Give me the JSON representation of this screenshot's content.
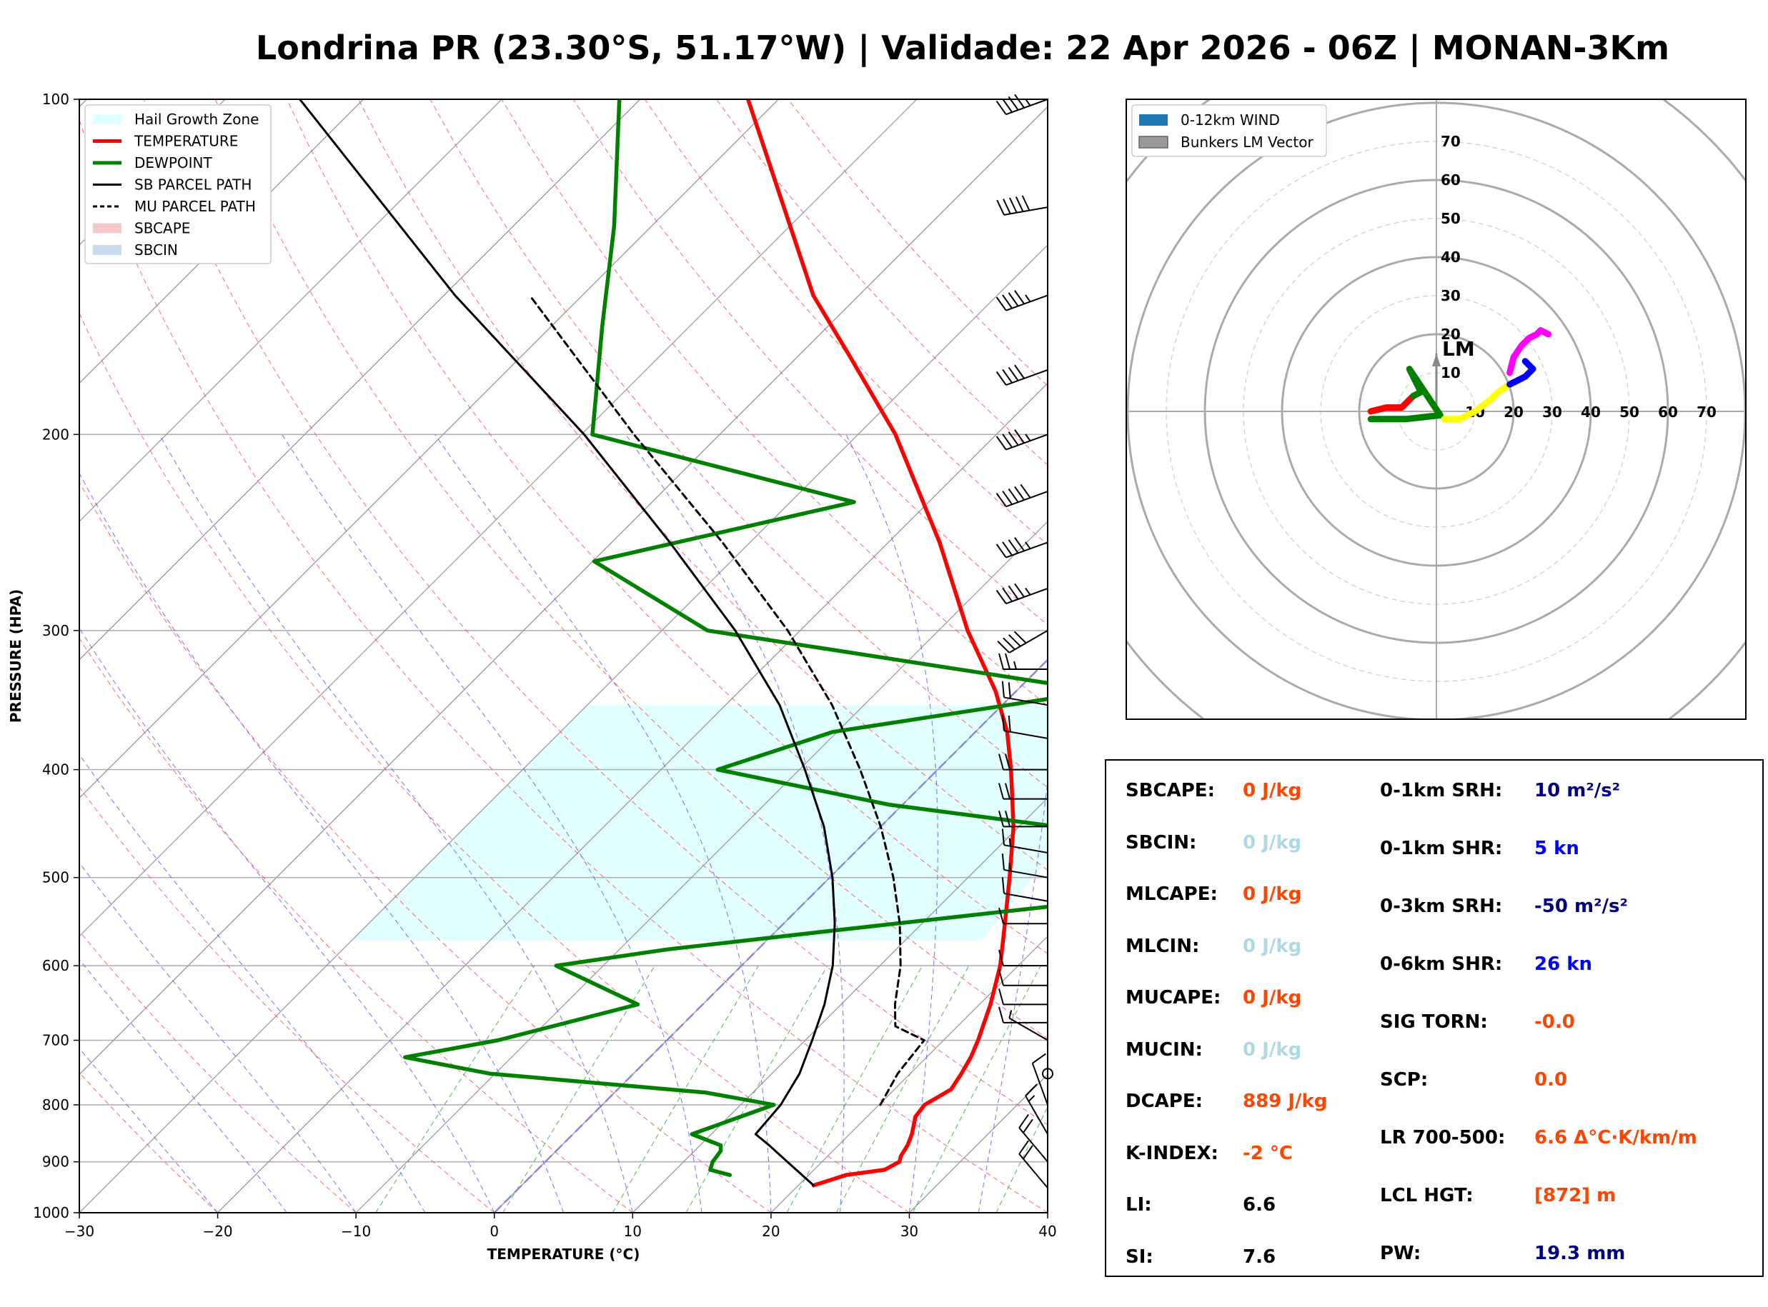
{
  "title": "Londrina PR (23.30°S, 51.17°W) | Validade: 22 Apr 2026 - 06Z | MONAN-3Km",
  "chart_data": [
    {
      "type": "line",
      "name": "skew-t",
      "xlabel": "TEMPERATURE (°C)",
      "ylabel": "PRESSURE (HPA)",
      "xlim": [
        -30,
        40
      ],
      "ylim": [
        1000,
        100
      ],
      "y_scale": "log",
      "skew": true,
      "x_ticks": [
        "−30",
        "−20",
        "−10",
        "0",
        "10",
        "20",
        "30",
        "40"
      ],
      "y_ticks": [
        "100",
        "200",
        "300",
        "400",
        "500",
        "600",
        "700",
        "800",
        "900",
        "1000"
      ],
      "legend_position": "top-left",
      "legend": [
        {
          "label": "Hail Growth Zone",
          "color": "#e0ffff",
          "kind": "patch"
        },
        {
          "label": "TEMPERATURE",
          "color": "#ff0000",
          "kind": "line"
        },
        {
          "label": "DEWPOINT",
          "color": "#008000",
          "kind": "line"
        },
        {
          "label": "SB PARCEL PATH",
          "color": "#000000",
          "kind": "line"
        },
        {
          "label": "MU PARCEL PATH",
          "color": "#000000",
          "kind": "dashed"
        },
        {
          "label": "SBCAPE",
          "color": "#f8c8c8",
          "kind": "patch"
        },
        {
          "label": "SBCIN",
          "color": "#c8dcee",
          "kind": "patch"
        }
      ],
      "series": [
        {
          "name": "TEMPERATURE",
          "color": "#ff0000",
          "p": [
            945,
            925,
            915,
            900,
            890,
            870,
            850,
            820,
            800,
            775,
            750,
            725,
            700,
            650,
            600,
            550,
            500,
            450,
            400,
            370,
            340,
            300,
            250,
            200,
            170,
            150,
            125,
            100
          ],
          "t": [
            21.1,
            22.7,
            25.1,
            25.6,
            25.3,
            25.0,
            24.5,
            23.5,
            23.3,
            24.1,
            23.7,
            23.2,
            22.5,
            20.8,
            18.7,
            16.0,
            13.0,
            9.6,
            5.3,
            2.3,
            -1.5,
            -7.9,
            -16.3,
            -27.3,
            -36.3,
            -43.3,
            -51.8,
            -62.2
          ]
        },
        {
          "name": "DEWPOINT",
          "color": "#008000",
          "p": [
            925,
            915,
            900,
            880,
            870,
            850,
            800,
            780,
            750,
            725,
            700,
            650,
            600,
            580,
            560,
            520,
            500,
            490,
            470,
            430,
            400,
            370,
            340,
            300,
            260,
            230,
            200,
            160,
            130,
            100
          ],
          "t": [
            14.3,
            12.5,
            12.1,
            11.9,
            11.5,
            8.6,
            12.4,
            6.6,
            -10.4,
            -17.7,
            -12.2,
            -4.7,
            -13.4,
            -6.5,
            3.1,
            23.8,
            23.1,
            22.6,
            25.9,
            -1.0,
            -15.9,
            -10.3,
            6.0,
            -26.7,
            -39.9,
            -25.4,
            -49.2,
            -56.3,
            -62.7,
            -71.5
          ]
        },
        {
          "name": "SB PARCEL PATH",
          "color": "#000000",
          "p": [
            945,
            900,
            870,
            850,
            800,
            750,
            700,
            650,
            600,
            550,
            500,
            450,
            400,
            350,
            300,
            250,
            200,
            150,
            100
          ],
          "t": [
            21.1,
            17.5,
            15.0,
            13.2,
            12.9,
            12.0,
            10.5,
            8.8,
            6.6,
            3.7,
            0.2,
            -4.1,
            -9.6,
            -16.1,
            -24.7,
            -35.8,
            -49.8,
            -69.2,
            -94.6
          ]
        },
        {
          "name": "MU PARCEL PATH",
          "color": "#000000",
          "dash": true,
          "p": [
            800,
            750,
            700,
            680,
            650,
            600,
            550,
            500,
            450,
            400,
            350,
            300,
            250,
            200,
            150
          ],
          "t": [
            20.1,
            19.1,
            18.6,
            15.5,
            13.9,
            11.5,
            8.4,
            4.6,
            0.0,
            -5.6,
            -12.3,
            -20.9,
            -32.0,
            -46.2,
            -63.8
          ]
        }
      ],
      "hail_growth_zone": {
        "p_bottom": 570,
        "p_top": 350,
        "t_min": -30,
        "t_max": 13
      }
    },
    {
      "type": "scatter",
      "name": "hodograph",
      "rings": [
        10,
        20,
        30,
        40,
        50,
        60,
        70
      ],
      "ring_labels_x": [
        "10",
        "20",
        "30",
        "40",
        "50",
        "60",
        "70"
      ],
      "ring_labels_y": [
        "10",
        "20",
        "30",
        "40",
        "50",
        "60",
        "70"
      ],
      "legend": [
        {
          "label": "0-12km WIND",
          "color": "#1f77b4"
        },
        {
          "label": "Bunkers LM Vector",
          "color": "#999999"
        }
      ],
      "legend_position": "top-left",
      "lm_label": "LM",
      "lm_vector": {
        "u": 0,
        "v": 15
      },
      "series": [
        {
          "segment": "0-1km",
          "color": "#ff0000",
          "u": [
            -17,
            -13,
            -9,
            -7,
            -6
          ],
          "v": [
            0,
            1,
            1,
            3,
            4
          ]
        },
        {
          "segment": "1-3km",
          "color": "#008000",
          "u": [
            -6,
            -4,
            -7,
            -5,
            -3,
            -1,
            1,
            -8,
            -14,
            -17
          ],
          "v": [
            4,
            5,
            11,
            8,
            5,
            2,
            -1,
            -2,
            -2,
            -2
          ]
        },
        {
          "segment": "3-6km",
          "color": "#ffff00",
          "u": [
            2,
            6,
            10,
            14,
            16,
            19
          ],
          "v": [
            -2,
            -2,
            0,
            3,
            5,
            7
          ]
        },
        {
          "segment": "6-9km",
          "color": "#0000ff",
          "u": [
            19,
            21,
            23,
            24,
            25,
            24,
            23
          ],
          "v": [
            7,
            8,
            9,
            10,
            11,
            12,
            13
          ]
        },
        {
          "segment": "9-12km",
          "color": "#ff00ff",
          "u": [
            19,
            20,
            22,
            24,
            26,
            27,
            29
          ],
          "v": [
            10,
            14,
            17,
            19,
            20,
            21,
            20
          ]
        }
      ]
    }
  ],
  "wind_barbs": {
    "p": [
      100,
      125,
      150,
      175,
      200,
      225,
      250,
      275,
      300,
      325,
      350,
      375,
      400,
      425,
      450,
      475,
      500,
      525,
      550,
      600,
      625,
      650,
      675,
      700,
      750,
      800,
      850,
      900,
      950
    ],
    "speed_kn": [
      45,
      50,
      45,
      40,
      45,
      50,
      45,
      45,
      40,
      25,
      20,
      20,
      20,
      20,
      20,
      15,
      15,
      10,
      10,
      10,
      10,
      10,
      10,
      5,
      0,
      10,
      15,
      20,
      20
    ],
    "direction_deg": [
      250,
      260,
      250,
      250,
      250,
      250,
      250,
      250,
      240,
      270,
      280,
      280,
      270,
      270,
      270,
      280,
      280,
      280,
      270,
      270,
      270,
      270,
      270,
      300,
      0,
      340,
      330,
      320,
      320
    ]
  },
  "indices": {
    "left": [
      {
        "label": "SBCAPE:",
        "value": "0 J/kg",
        "color": "#ff4500"
      },
      {
        "label": "SBCIN:",
        "value": "0 J/kg",
        "color": "#add8e6"
      },
      {
        "label": "MLCAPE:",
        "value": "0 J/kg",
        "color": "#ff4500"
      },
      {
        "label": "MLCIN:",
        "value": "0 J/kg",
        "color": "#add8e6"
      },
      {
        "label": "MUCAPE:",
        "value": "0 J/kg",
        "color": "#ff4500"
      },
      {
        "label": "MUCIN:",
        "value": "0 J/kg",
        "color": "#add8e6"
      },
      {
        "label": "DCAPE:",
        "value": "889 J/kg",
        "color": "#ff4500"
      },
      {
        "label": "K-INDEX:",
        "value": "-2 °C",
        "color": "#ff4500"
      },
      {
        "label": "LI:",
        "value": "6.6",
        "color": "#000000"
      },
      {
        "label": "SI:",
        "value": "7.6",
        "color": "#000000"
      }
    ],
    "right": [
      {
        "label": "0-1km SRH:",
        "value": "10 m²/s²",
        "color": "#000080"
      },
      {
        "label": "0-1km SHR:",
        "value": "5 kn",
        "color": "#0000ff"
      },
      {
        "label": "0-3km SRH:",
        "value": "-50 m²/s²",
        "color": "#000080"
      },
      {
        "label": "0-6km SHR:",
        "value": "26 kn",
        "color": "#0000ff"
      },
      {
        "label": "SIG TORN:",
        "value": "-0.0",
        "color": "#ff4500"
      },
      {
        "label": "SCP:",
        "value": "0.0",
        "color": "#ff4500"
      },
      {
        "label": "LR 700-500:",
        "value": "6.6 Δ°C·K/km/m",
        "color": "#ff4500"
      },
      {
        "label": "LCL HGT:",
        "value": "[872] m",
        "color": "#ff4500"
      },
      {
        "label": "PW:",
        "value": "19.3 mm",
        "color": "#000080"
      }
    ]
  }
}
